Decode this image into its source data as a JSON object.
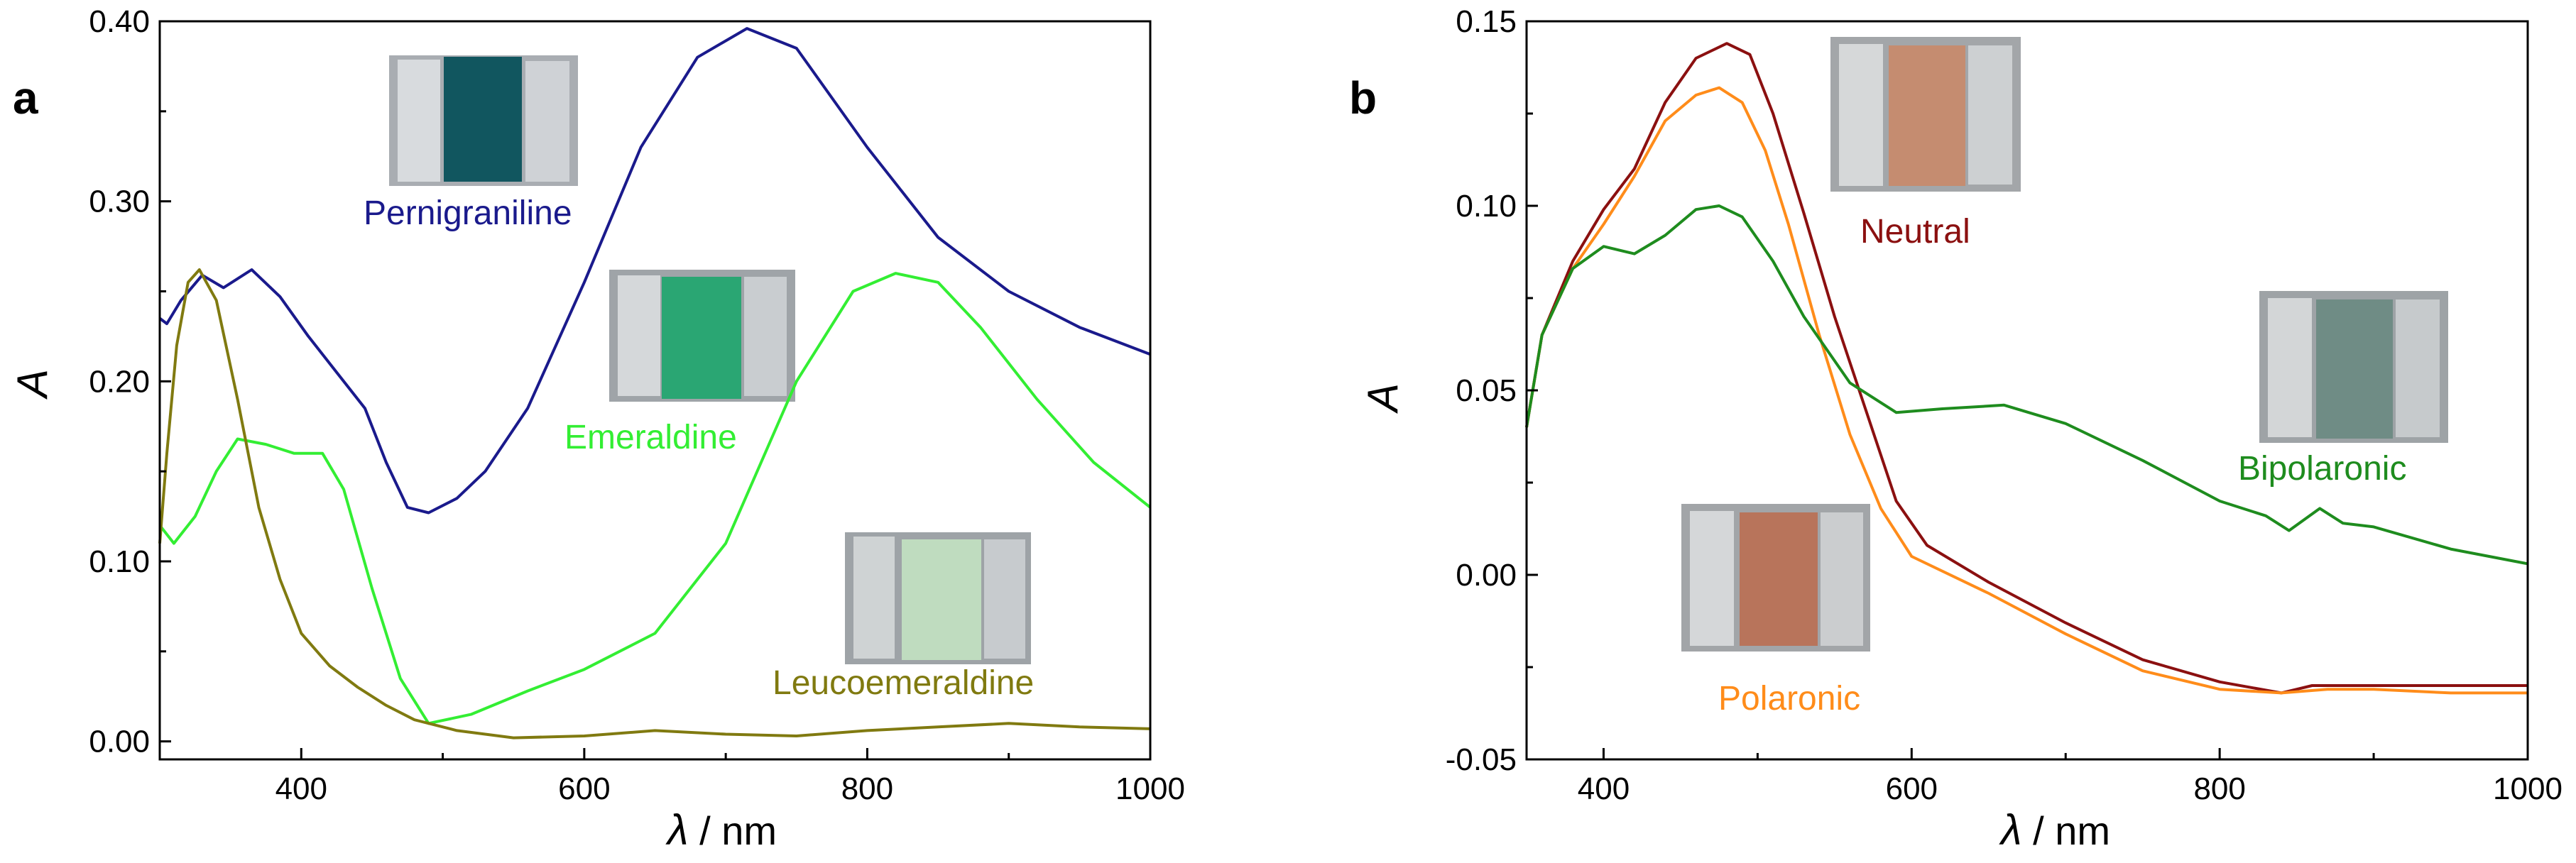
{
  "chart_data": [
    {
      "type": "line",
      "panel_label": "a",
      "xlabel_symbol": "λ",
      "xlabel_unit": " / nm",
      "ylabel": "A",
      "xlim": [
        300,
        1000
      ],
      "ylim": [
        -0.01,
        0.4
      ],
      "xticks": [
        400,
        600,
        800,
        1000
      ],
      "xtick_labels": [
        "400",
        "600",
        "800",
        "1000"
      ],
      "yticks": [
        0.0,
        0.1,
        0.2,
        0.3,
        0.4
      ],
      "ytick_labels": [
        "0.00",
        "0.10",
        "0.20",
        "0.30",
        "0.40"
      ],
      "series": [
        {
          "name": "Pernigraniline",
          "color": "#1a1a8c",
          "x": [
            300,
            305,
            315,
            330,
            345,
            365,
            385,
            405,
            425,
            445,
            460,
            475,
            490,
            510,
            530,
            560,
            600,
            640,
            680,
            715,
            750,
            800,
            850,
            900,
            950,
            1000
          ],
          "y": [
            0.235,
            0.232,
            0.245,
            0.259,
            0.252,
            0.262,
            0.247,
            0.225,
            0.205,
            0.185,
            0.155,
            0.13,
            0.127,
            0.135,
            0.15,
            0.185,
            0.255,
            0.33,
            0.38,
            0.396,
            0.385,
            0.33,
            0.28,
            0.25,
            0.23,
            0.215
          ]
        },
        {
          "name": "Emeraldine",
          "color": "#33ee33",
          "x": [
            300,
            310,
            325,
            340,
            355,
            375,
            395,
            415,
            430,
            450,
            470,
            490,
            520,
            560,
            600,
            650,
            700,
            750,
            790,
            820,
            850,
            880,
            920,
            960,
            1000
          ],
          "y": [
            0.12,
            0.11,
            0.125,
            0.15,
            0.168,
            0.165,
            0.16,
            0.16,
            0.14,
            0.085,
            0.035,
            0.01,
            0.015,
            0.028,
            0.04,
            0.06,
            0.11,
            0.2,
            0.25,
            0.26,
            0.255,
            0.23,
            0.19,
            0.155,
            0.13
          ]
        },
        {
          "name": "Leucoemeraldine",
          "color": "#807a10",
          "x": [
            300,
            305,
            312,
            320,
            328,
            340,
            355,
            370,
            385,
            400,
            420,
            440,
            460,
            480,
            510,
            550,
            600,
            650,
            700,
            750,
            800,
            850,
            900,
            950,
            1000
          ],
          "y": [
            0.11,
            0.16,
            0.22,
            0.255,
            0.262,
            0.245,
            0.19,
            0.13,
            0.09,
            0.06,
            0.042,
            0.03,
            0.02,
            0.012,
            0.006,
            0.002,
            0.003,
            0.006,
            0.004,
            0.003,
            0.006,
            0.008,
            0.01,
            0.008,
            0.007
          ]
        }
      ],
      "annotations": [
        "Pernigraniline",
        "Emeraldine",
        "Leucoemeraldine"
      ]
    },
    {
      "type": "line",
      "panel_label": "b",
      "xlabel_symbol": "λ",
      "xlabel_unit": " / nm",
      "ylabel": "A",
      "xlim": [
        350,
        1000
      ],
      "ylim": [
        -0.05,
        0.15
      ],
      "xticks": [
        400,
        600,
        800,
        1000
      ],
      "xtick_labels": [
        "400",
        "600",
        "800",
        "1000"
      ],
      "yticks": [
        -0.05,
        0.0,
        0.05,
        0.1,
        0.15
      ],
      "ytick_labels": [
        "-0.05",
        "0.00",
        "0.05",
        "0.10",
        "0.15"
      ],
      "series": [
        {
          "name": "Neutral",
          "color": "#8b1010",
          "x": [
            350,
            360,
            380,
            400,
            420,
            440,
            460,
            480,
            495,
            510,
            530,
            550,
            570,
            590,
            610,
            650,
            700,
            750,
            800,
            840,
            860,
            900,
            950,
            1000
          ],
          "y": [
            0.04,
            0.065,
            0.085,
            0.099,
            0.11,
            0.128,
            0.14,
            0.144,
            0.141,
            0.125,
            0.098,
            0.07,
            0.045,
            0.02,
            0.008,
            -0.002,
            -0.013,
            -0.023,
            -0.029,
            -0.032,
            -0.03,
            -0.03,
            -0.03,
            -0.03
          ]
        },
        {
          "name": "Polaronic",
          "color": "#ff8c1a",
          "x": [
            350,
            360,
            380,
            400,
            420,
            440,
            460,
            475,
            490,
            505,
            520,
            540,
            560,
            580,
            600,
            650,
            700,
            750,
            800,
            840,
            870,
            900,
            950,
            1000
          ],
          "y": [
            0.04,
            0.065,
            0.083,
            0.095,
            0.108,
            0.123,
            0.13,
            0.132,
            0.128,
            0.115,
            0.095,
            0.065,
            0.038,
            0.018,
            0.005,
            -0.005,
            -0.016,
            -0.026,
            -0.031,
            -0.032,
            -0.031,
            -0.031,
            -0.032,
            -0.032
          ]
        },
        {
          "name": "Bipolaronic",
          "color": "#1e8c1e",
          "x": [
            350,
            360,
            380,
            400,
            420,
            440,
            460,
            475,
            490,
            510,
            530,
            560,
            590,
            620,
            660,
            700,
            750,
            800,
            830,
            845,
            865,
            880,
            900,
            950,
            1000
          ],
          "y": [
            0.04,
            0.065,
            0.083,
            0.089,
            0.087,
            0.092,
            0.099,
            0.1,
            0.097,
            0.085,
            0.07,
            0.052,
            0.044,
            0.045,
            0.046,
            0.041,
            0.031,
            0.02,
            0.016,
            0.012,
            0.018,
            0.014,
            0.013,
            0.007,
            0.003
          ]
        }
      ],
      "annotations": [
        "Neutral",
        "Polaronic",
        "Bipolaronic"
      ]
    }
  ]
}
